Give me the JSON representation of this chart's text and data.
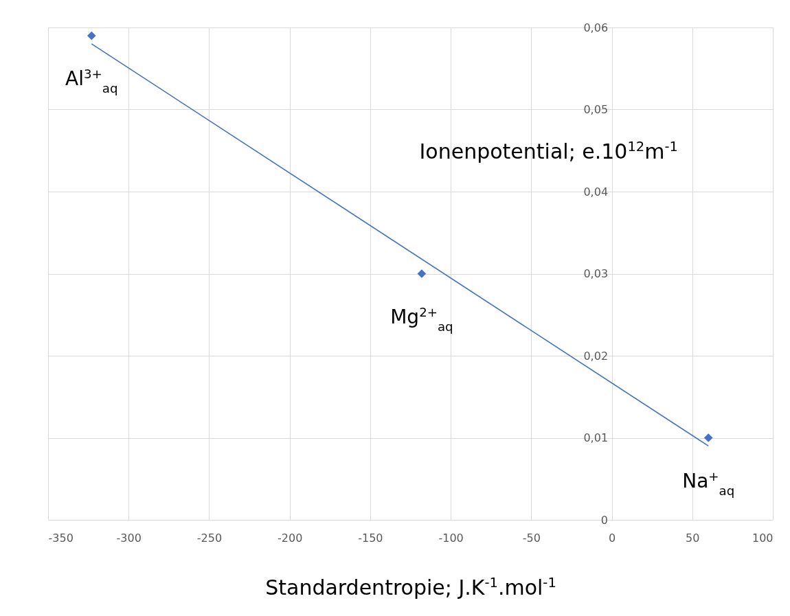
{
  "chart_data": {
    "type": "scatter",
    "xlabel": "Standardentropie; J.K$^{-1}$.mol$^{-1}$",
    "ylabel": "Ionenpotential; e.10$^{12}$m$^{-1}$",
    "xlim": [
      -350,
      100
    ],
    "xticks": [
      -350,
      -300,
      -250,
      -200,
      -150,
      -100,
      -50,
      0,
      50,
      100
    ],
    "ylim": [
      0,
      0.06
    ],
    "yticks": [
      0,
      {
        "value": 0.01,
        "label": "0,01"
      },
      {
        "value": 0.02,
        "label": "0,02"
      },
      {
        "value": 0.03,
        "label": "0,03"
      },
      {
        "value": 0.04,
        "label": "0,04"
      },
      {
        "value": 0.05,
        "label": "0,05"
      },
      {
        "value": 0.06,
        "label": "0,06"
      }
    ],
    "grid": true,
    "series": [
      {
        "type": "scatter",
        "marker": "diamond",
        "color": "#4472c4",
        "x": [
          -323,
          -118,
          60
        ],
        "values": [
          0.059,
          0.03,
          0.01
        ]
      },
      {
        "type": "line",
        "line_style": "solid",
        "color": "#4472c4",
        "x": [
          -323,
          60
        ],
        "values": [
          0.058,
          0.009
        ]
      }
    ],
    "annotations": [
      {
        "text": "Al$^{3+}$$_{aq}$",
        "x": -323,
        "y": 0.059
      },
      {
        "text": "Mg$^{2+}$$_{aq}$",
        "x": -118,
        "y": 0.03
      },
      {
        "text": "Na$^{+}$$_{aq}$",
        "x": 60,
        "y": 0.01
      }
    ]
  }
}
